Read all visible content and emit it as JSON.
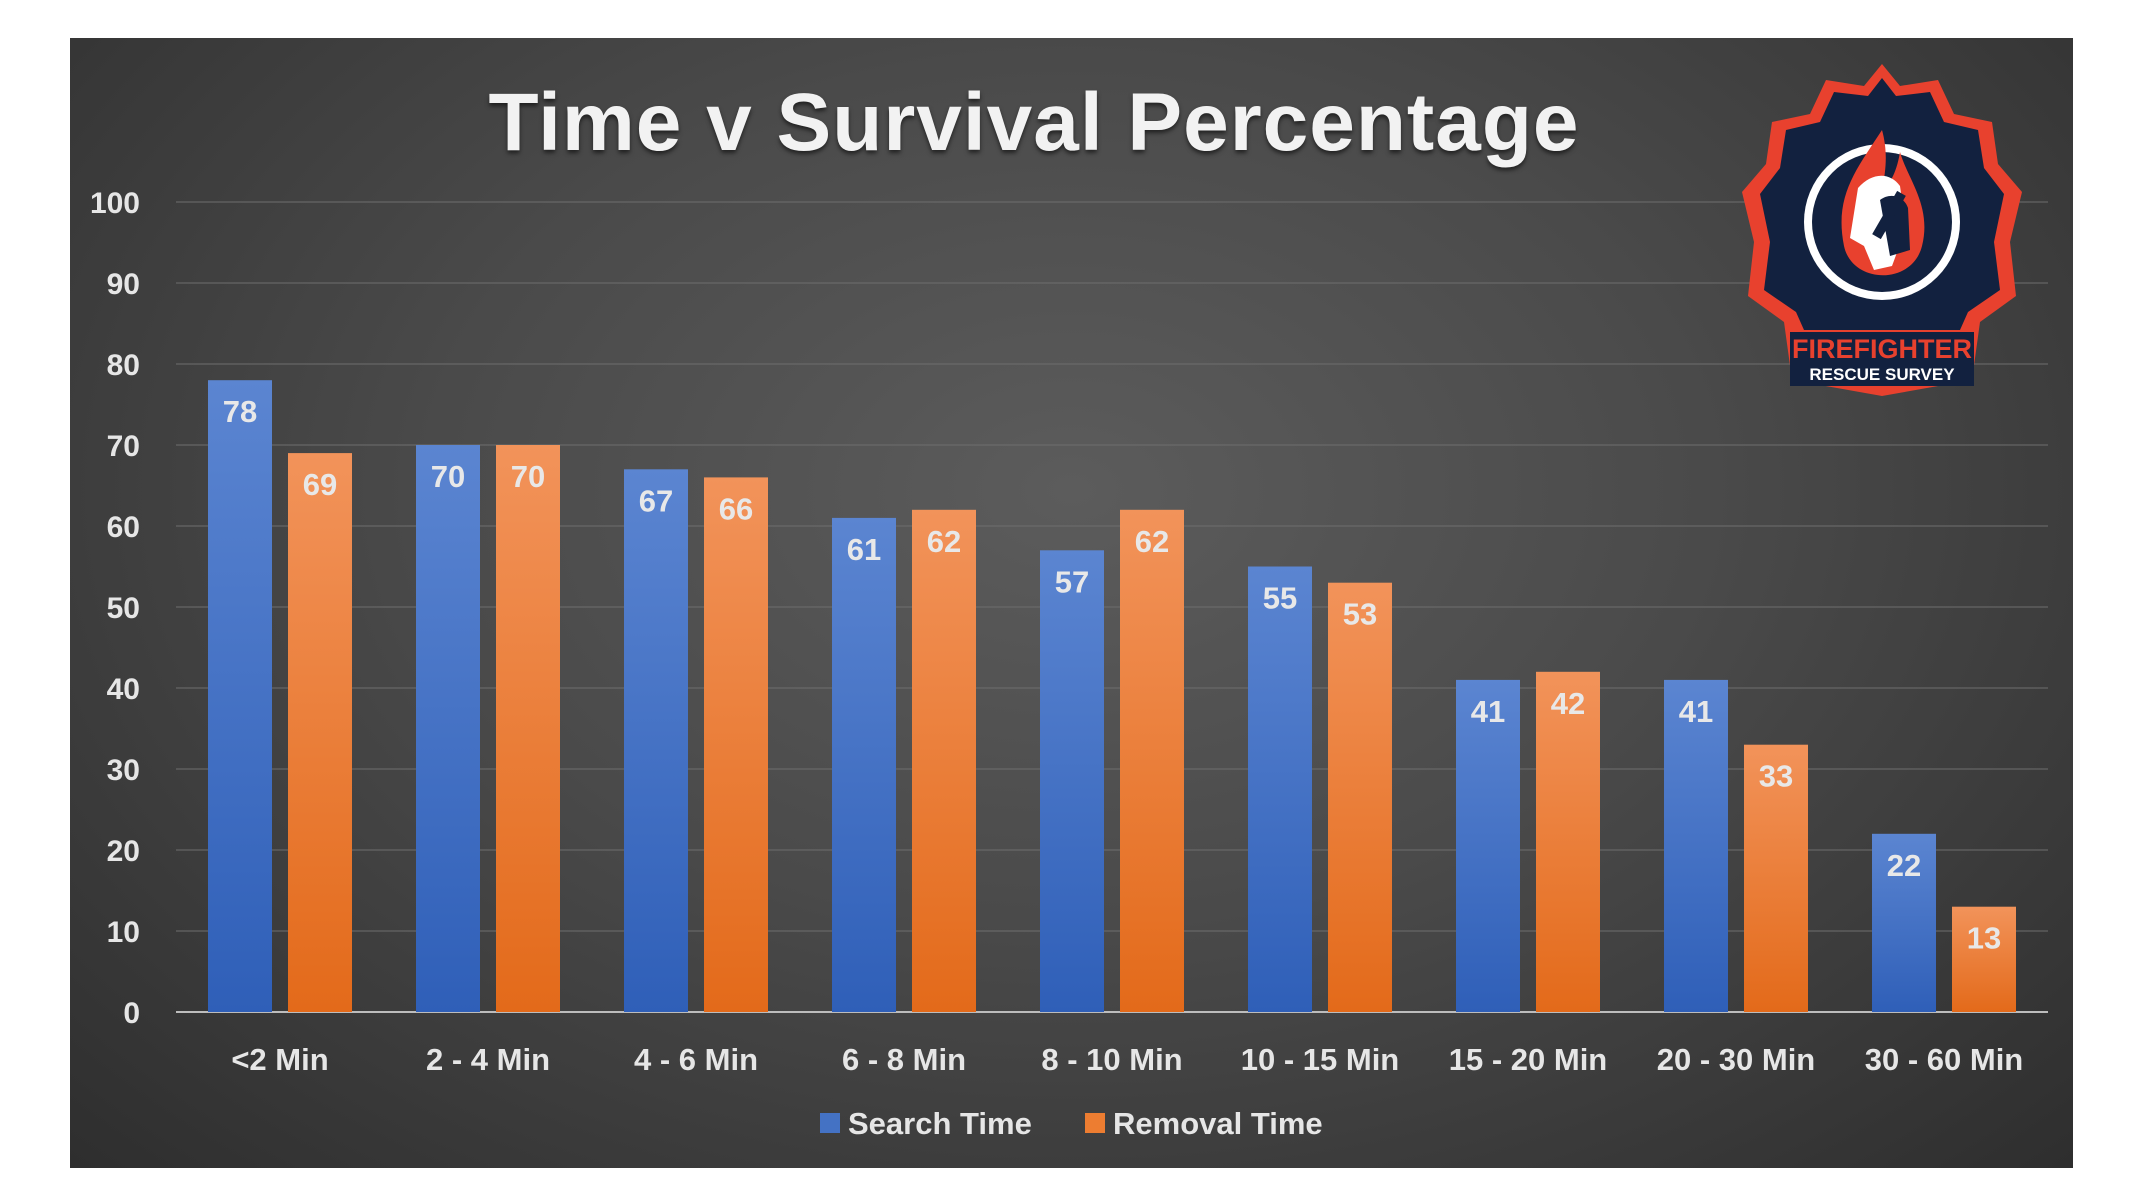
{
  "colors": {
    "search": "#4472c4",
    "removal": "#ed7d31",
    "logo_red": "#e8412e",
    "logo_navy": "#12213f"
  },
  "logo": {
    "line1": "FIREFIGHTER",
    "line2": "RESCUE SURVEY"
  },
  "chart_data": {
    "type": "bar",
    "title": "Time v Survival Percentage",
    "categories": [
      "<2 Min",
      "2 - 4 Min",
      "4 - 6 Min",
      "6 - 8 Min",
      "8 - 10 Min",
      "10 - 15 Min",
      "15 - 20 Min",
      "20 - 30 Min",
      "30 - 60 Min"
    ],
    "series": [
      {
        "name": "Search Time",
        "values": [
          78,
          70,
          67,
          61,
          57,
          55,
          41,
          41,
          22
        ]
      },
      {
        "name": "Removal Time",
        "values": [
          69,
          70,
          66,
          62,
          62,
          53,
          42,
          33,
          13
        ]
      }
    ],
    "ylim": [
      0,
      100
    ],
    "yticks": [
      0,
      10,
      20,
      30,
      40,
      50,
      60,
      70,
      80,
      90,
      100
    ],
    "grid": true,
    "data_labels": true,
    "legend": "bottom"
  }
}
